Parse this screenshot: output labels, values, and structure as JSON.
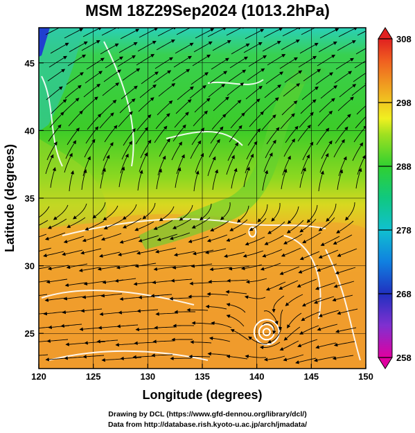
{
  "title": "MSM 18Z29Sep2024 (1013.2hPa)",
  "x_axis": {
    "label": "Longitude (degrees)",
    "range": [
      120,
      150
    ],
    "ticks": [
      "120",
      "125",
      "130",
      "135",
      "140",
      "145",
      "150"
    ]
  },
  "y_axis": {
    "label": "Latitude (degrees)",
    "range": [
      22.4,
      47.6
    ],
    "ticks": [
      "25",
      "30",
      "35",
      "40",
      "45"
    ]
  },
  "colorbar": {
    "range": [
      258,
      308
    ],
    "ticks": [
      "258",
      "268",
      "278",
      "288",
      "298",
      "308"
    ],
    "colors": [
      "#e000a0",
      "#8030d0",
      "#2030c0",
      "#1080e0",
      "#10c0d0",
      "#10c880",
      "#30d030",
      "#a0e020",
      "#f0f020",
      "#f0a020",
      "#f06020",
      "#e02020"
    ]
  },
  "features": {
    "typhoon_center": {
      "lon": 140.9,
      "lat": 25.1
    },
    "secondary_low": {
      "lon": 139.6,
      "lat": 32.5
    }
  },
  "footer": {
    "line1": "Drawing by DCL (https://www.gfd-dennou.org/library/dcl/)",
    "line2": "Data from http://database.rish.kyoto-u.ac.jp/arch/jmadata/"
  }
}
